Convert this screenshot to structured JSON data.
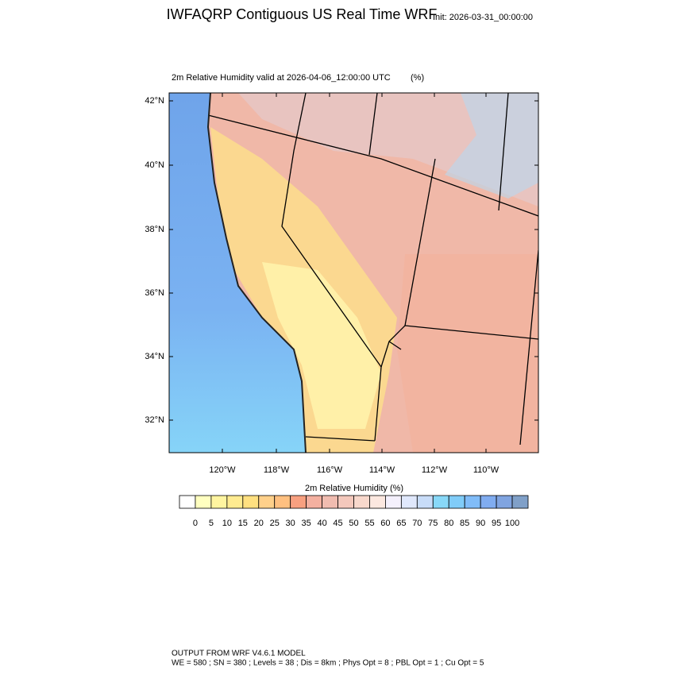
{
  "header": {
    "title": "IWFAQRP Contiguous US Real Time WRF",
    "init": "Init: 2026-03-31_00:00:00"
  },
  "map": {
    "subtitle": "2m Relative Humidity valid at 2026-04-06_12:00:00 UTC",
    "units": "(%)",
    "lat_ticks": [
      "42°N",
      "40°N",
      "38°N",
      "36°N",
      "34°N",
      "32°N"
    ],
    "lon_ticks": [
      "120°W",
      "118°W",
      "116°W",
      "114°W",
      "112°W",
      "110°W"
    ]
  },
  "colorbar": {
    "title": "2m Relative Humidity",
    "units": "(%)",
    "colors": [
      "#ffffff",
      "#ffffc0",
      "#fff5a0",
      "#ffeb90",
      "#ffe080",
      "#ffd08a",
      "#ffc080",
      "#f8a080",
      "#f4b0a0",
      "#f0bcb0",
      "#f4c8bc",
      "#f8d8cc",
      "#fce8e0",
      "#f4f0fc",
      "#e0e8fc",
      "#c8dcf8",
      "#88d8f8",
      "#80ccf8",
      "#80bcf8",
      "#80acf0",
      "#80a4e0",
      "#80a0c8"
    ],
    "labels": [
      0,
      5,
      10,
      15,
      20,
      25,
      30,
      35,
      40,
      45,
      50,
      55,
      60,
      65,
      70,
      75,
      80,
      85,
      90,
      95,
      100
    ]
  },
  "footer": {
    "line1": "OUTPUT FROM WRF V4.6.1 MODEL",
    "line2": "WE = 580 ; SN = 380 ; Levels = 38 ; Dis = 8km ; Phys Opt = 8 ; PBL Opt = 1 ; Cu Opt = 5"
  }
}
